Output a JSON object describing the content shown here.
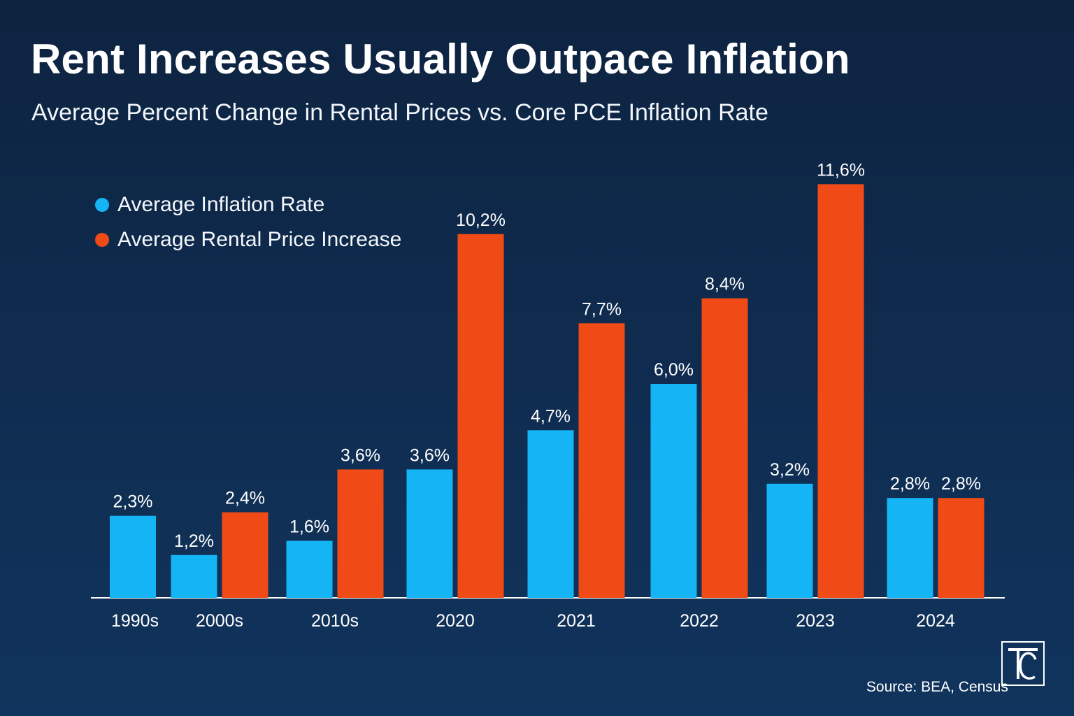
{
  "header": {
    "title": "Rent Increases Usually Outpace Inflation",
    "subtitle": "Average Percent Change in Rental Prices vs. Core PCE Inflation Rate"
  },
  "footer": {
    "source": "Source: BEA, Census",
    "logo_text": "TC"
  },
  "colors": {
    "inflation": "#14b4f5",
    "rent": "#f04a16",
    "background": "#0f2b4e"
  },
  "chart_data": {
    "type": "bar",
    "title": "Rent Increases Usually Outpace Inflation",
    "subtitle": "Average Percent Change in Rental Prices vs. Core PCE Inflation Rate",
    "categories": [
      "1990s",
      "2000s",
      "2010s",
      "2020",
      "2021",
      "2022",
      "2023",
      "2024"
    ],
    "series": [
      {
        "name": "Average Inflation Rate",
        "values": [
          2.3,
          1.2,
          1.6,
          3.6,
          4.7,
          6.0,
          3.2,
          2.8
        ],
        "labels": [
          "2,3%",
          "1,2%",
          "1,6%",
          "3,6%",
          "4,7%",
          "6,0%",
          "3,2%",
          "2,8%"
        ],
        "color": "#14b4f5"
      },
      {
        "name": "Average Rental Price Increase",
        "values": [
          null,
          2.4,
          3.6,
          10.2,
          7.7,
          8.4,
          11.6,
          2.8
        ],
        "labels": [
          "",
          "2,4%",
          "3,6%",
          "10,2%",
          "7,7%",
          "8,4%",
          "11,6%",
          "2,8%"
        ],
        "color": "#f04a16"
      }
    ],
    "legend": "top-left",
    "grid": false,
    "xlabel": "",
    "ylabel": ""
  }
}
